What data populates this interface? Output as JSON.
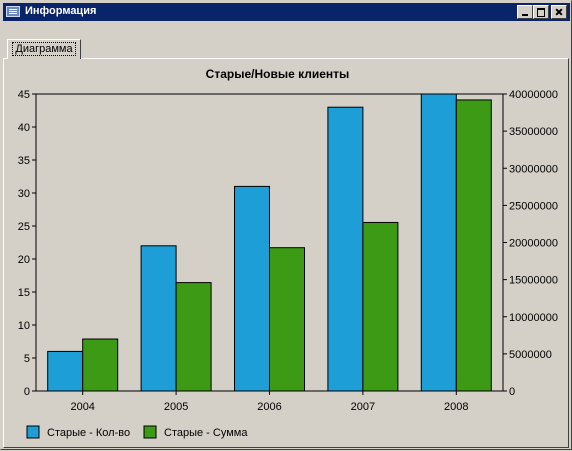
{
  "window": {
    "title": "Информация",
    "controls": {
      "minimize": "_",
      "maximize": "□",
      "close": "×"
    }
  },
  "tabs": [
    {
      "label": "Диаграмма",
      "active": true
    }
  ],
  "chart_data": {
    "type": "bar",
    "title": "Старые/Новые клиенты",
    "categories": [
      "2004",
      "2005",
      "2006",
      "2007",
      "2008"
    ],
    "series": [
      {
        "name": "Старые - Кол-во",
        "axis": "left",
        "color": "#1e9ed6",
        "values": [
          6,
          22,
          31,
          43,
          45
        ]
      },
      {
        "name": "Старые - Сумма",
        "axis": "right",
        "color": "#3c9a14",
        "values": [
          7000000,
          14600000,
          19300000,
          22700000,
          39200000
        ]
      }
    ],
    "y_left": {
      "min": 0,
      "max": 45,
      "ticks": [
        0,
        5,
        10,
        15,
        20,
        25,
        30,
        35,
        40,
        45
      ]
    },
    "y_right": {
      "min": 0,
      "max": 40000000,
      "ticks": [
        0,
        5000000,
        10000000,
        15000000,
        20000000,
        25000000,
        30000000,
        35000000,
        40000000
      ]
    },
    "legend_position": "bottom-left",
    "grid": false
  }
}
